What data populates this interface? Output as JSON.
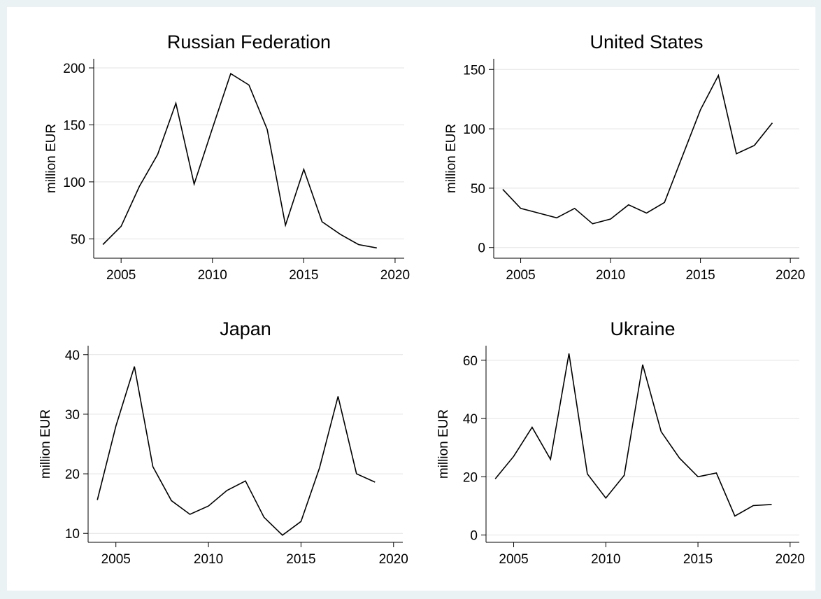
{
  "chart_data": [
    {
      "type": "line",
      "title": "Russian Federation",
      "ylabel": "million EUR",
      "xlabel": "",
      "xlim": [
        2003.5,
        2020.5
      ],
      "ylim": [
        33,
        208
      ],
      "xticks": [
        2005,
        2010,
        2015,
        2020
      ],
      "yticks": [
        50,
        100,
        150,
        200
      ],
      "grid": true,
      "x": [
        2004,
        2005,
        2006,
        2007,
        2008,
        2009,
        2010,
        2011,
        2012,
        2013,
        2014,
        2015,
        2016,
        2017,
        2018,
        2019
      ],
      "series": [
        {
          "values": [
            45,
            61,
            96,
            124,
            169,
            98,
            147,
            195,
            185,
            146,
            62,
            111,
            65,
            54,
            45,
            42
          ]
        }
      ]
    },
    {
      "type": "line",
      "title": "United States",
      "ylabel": "million EUR",
      "xlabel": "",
      "xlim": [
        2003.5,
        2020.5
      ],
      "ylim": [
        -9,
        159
      ],
      "xticks": [
        2005,
        2010,
        2015,
        2020
      ],
      "yticks": [
        0,
        50,
        100,
        150
      ],
      "grid": true,
      "x": [
        2004,
        2005,
        2006,
        2007,
        2008,
        2009,
        2010,
        2011,
        2012,
        2013,
        2014,
        2015,
        2016,
        2017,
        2018,
        2019
      ],
      "series": [
        {
          "values": [
            49,
            33,
            29,
            25,
            33,
            20,
            24,
            36,
            29,
            38,
            77,
            116,
            145,
            79,
            86,
            105
          ]
        }
      ]
    },
    {
      "type": "line",
      "title": "Japan",
      "ylabel": "million EUR",
      "xlabel": "",
      "xlim": [
        2003.5,
        2020.5
      ],
      "ylim": [
        8.5,
        41.5
      ],
      "xticks": [
        2005,
        2010,
        2015,
        2020
      ],
      "yticks": [
        10,
        20,
        30,
        40
      ],
      "grid": true,
      "x": [
        2004,
        2005,
        2006,
        2007,
        2008,
        2009,
        2010,
        2011,
        2012,
        2013,
        2014,
        2015,
        2016,
        2017,
        2018,
        2019
      ],
      "series": [
        {
          "values": [
            15.6,
            28,
            38,
            21.2,
            15.5,
            13.2,
            14.6,
            17.2,
            18.8,
            12.7,
            9.7,
            12,
            21,
            33,
            20,
            18.6
          ]
        }
      ]
    },
    {
      "type": "line",
      "title": "Ukraine",
      "ylabel": "million EUR",
      "xlabel": "",
      "xlim": [
        2003.5,
        2020.5
      ],
      "ylim": [
        -2.5,
        65
      ],
      "xticks": [
        2005,
        2010,
        2015,
        2020
      ],
      "yticks": [
        0,
        20,
        40,
        60
      ],
      "grid": true,
      "x": [
        2004,
        2005,
        2006,
        2007,
        2008,
        2009,
        2010,
        2011,
        2012,
        2013,
        2014,
        2015,
        2016,
        2017,
        2018,
        2019
      ],
      "series": [
        {
          "values": [
            19.3,
            27,
            37,
            26,
            62.3,
            21,
            12.7,
            20.5,
            58.5,
            35.5,
            26.4,
            20,
            21.3,
            6.5,
            10.1,
            10.5
          ]
        }
      ]
    }
  ]
}
